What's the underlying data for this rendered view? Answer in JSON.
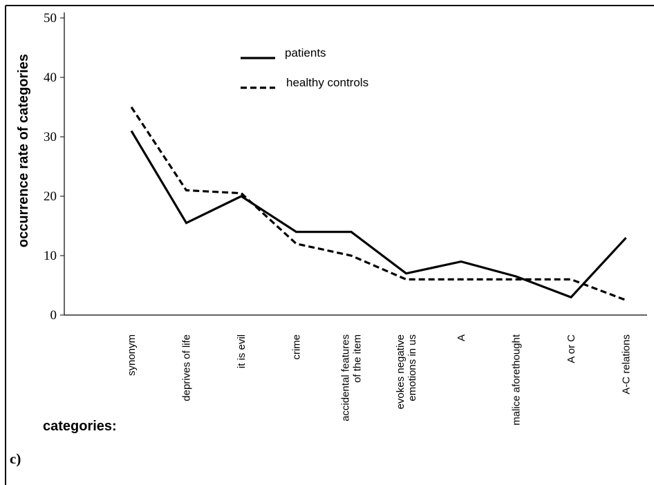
{
  "panel_label": "c)",
  "chart_data": {
    "type": "line",
    "title": "",
    "xlabel": "categories:",
    "ylabel": "occurrence rate of categories",
    "categories": [
      "synonym",
      "deprives of life",
      "it is evil",
      "crime",
      "accidental features of the item",
      "evokes negative emotions in us",
      "A",
      "malice aforethought",
      "A or C",
      "A-C relations"
    ],
    "category_lines": [
      [
        "synonym"
      ],
      [
        "deprives of life"
      ],
      [
        "it is evil"
      ],
      [
        "crime"
      ],
      [
        "accidental features",
        "of the item"
      ],
      [
        "evokes negative",
        "emotions in us"
      ],
      [
        "A"
      ],
      [
        "malice aforethought"
      ],
      [
        "A or C"
      ],
      [
        "A-C relations"
      ]
    ],
    "yticks": [
      0,
      10,
      20,
      30,
      40,
      50
    ],
    "ylim": [
      0,
      50
    ],
    "grid": false,
    "legend_position": "top-center",
    "series": [
      {
        "name": "patients",
        "style": "solid",
        "values": [
          31,
          15.5,
          20,
          14,
          14,
          7,
          9,
          6.5,
          3,
          13
        ]
      },
      {
        "name": "healthy controls",
        "style": "dashed",
        "values": [
          35,
          21,
          20.5,
          12,
          10,
          6,
          6,
          6,
          6,
          2.5
        ]
      }
    ]
  }
}
